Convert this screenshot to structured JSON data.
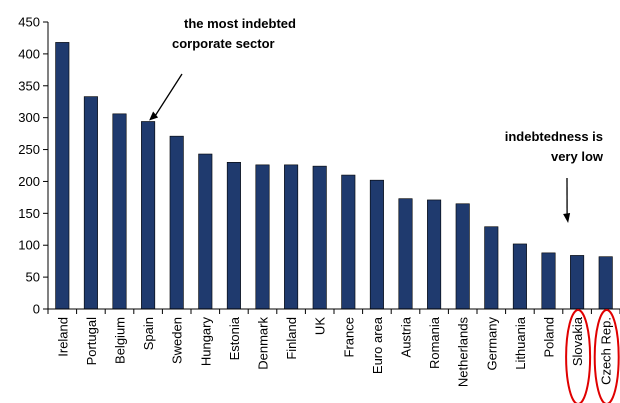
{
  "chart_data": {
    "type": "bar",
    "categories": [
      "Ireland",
      "Portugal",
      "Belgium",
      "Spain",
      "Sweden",
      "Hungary",
      "Estonia",
      "Denmark",
      "Finland",
      "UK",
      "France",
      "Euro area",
      "Austria",
      "Romania",
      "Netherlands",
      "Germany",
      "Lithuania",
      "Poland",
      "Slovakia",
      "Czech Rep."
    ],
    "values": [
      418,
      333,
      306,
      294,
      271,
      243,
      230,
      226,
      226,
      224,
      210,
      202,
      173,
      171,
      165,
      129,
      102,
      88,
      84,
      82
    ],
    "yticks": [
      "0",
      "50",
      "100",
      "150",
      "200",
      "250",
      "300",
      "350",
      "400",
      "450"
    ],
    "ylim": [
      0,
      450
    ],
    "bar_color": "#1F3A6E",
    "highlight_color": "#E00000",
    "highlighted": [
      "Slovakia",
      "Czech Rep."
    ],
    "grid": false,
    "annotations": [
      {
        "lines": [
          "the  most indebted",
          "corporate sector"
        ],
        "points_to": "Spain"
      },
      {
        "lines": [
          "indebtedness is",
          "very low"
        ],
        "points_to": "Slovakia"
      }
    ]
  }
}
